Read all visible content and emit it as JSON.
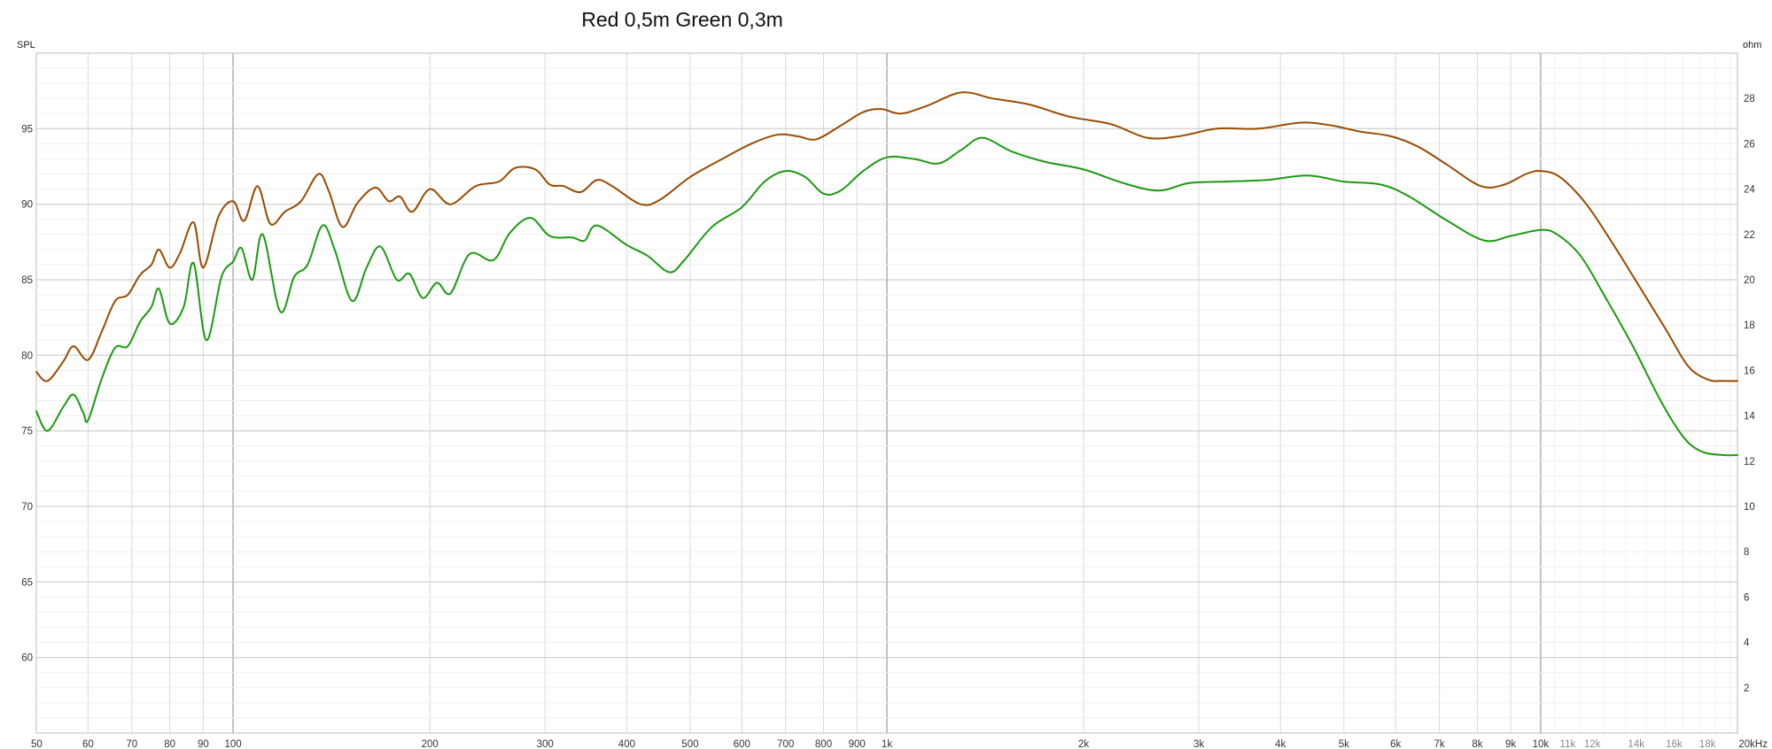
{
  "chart_data": {
    "type": "line",
    "title": "Red 0,5m Green 0,3m",
    "ylabel": "SPL",
    "y2label": "ohm",
    "x_scale": "log",
    "xlim": [
      50,
      20000
    ],
    "ylim": [
      55,
      100
    ],
    "y2lim": [
      0,
      30
    ],
    "grid": true,
    "y_ticks": [
      60,
      65,
      70,
      75,
      80,
      85,
      90,
      95
    ],
    "y2_ticks": [
      2,
      4,
      6,
      8,
      10,
      12,
      14,
      16,
      18,
      20,
      22,
      24,
      26,
      28
    ],
    "x_ticks": [
      {
        "value": 50,
        "label": "50"
      },
      {
        "value": 60,
        "label": "60"
      },
      {
        "value": 70,
        "label": "70"
      },
      {
        "value": 80,
        "label": "80"
      },
      {
        "value": 90,
        "label": "90"
      },
      {
        "value": 100,
        "label": "100"
      },
      {
        "value": 200,
        "label": "200"
      },
      {
        "value": 300,
        "label": "300"
      },
      {
        "value": 400,
        "label": "400"
      },
      {
        "value": 500,
        "label": "500"
      },
      {
        "value": 600,
        "label": "600"
      },
      {
        "value": 700,
        "label": "700"
      },
      {
        "value": 800,
        "label": "800"
      },
      {
        "value": 900,
        "label": "900"
      },
      {
        "value": 1000,
        "label": "1k"
      },
      {
        "value": 2000,
        "label": "2k"
      },
      {
        "value": 3000,
        "label": "3k"
      },
      {
        "value": 4000,
        "label": "4k"
      },
      {
        "value": 5000,
        "label": "5k"
      },
      {
        "value": 6000,
        "label": "6k"
      },
      {
        "value": 7000,
        "label": "7k"
      },
      {
        "value": 8000,
        "label": "8k"
      },
      {
        "value": 9000,
        "label": "9k"
      },
      {
        "value": 10000,
        "label": "10k"
      },
      {
        "value": 11000,
        "label": "11k",
        "minor": true
      },
      {
        "value": 12000,
        "label": "12k",
        "minor": true
      },
      {
        "value": 14000,
        "label": "14k",
        "minor": true
      },
      {
        "value": 16000,
        "label": "16k",
        "minor": true
      },
      {
        "value": 18000,
        "label": "18k",
        "minor": true
      },
      {
        "value": 20000,
        "label": "20kHz"
      }
    ],
    "series": [
      {
        "color": "#9a4a00",
        "points": [
          [
            50,
            78.9
          ],
          [
            52,
            78.3
          ],
          [
            55,
            79.6
          ],
          [
            57,
            80.6
          ],
          [
            60,
            79.7
          ],
          [
            63,
            81.6
          ],
          [
            66,
            83.6
          ],
          [
            69,
            84.0
          ],
          [
            72,
            85.3
          ],
          [
            75,
            86.0
          ],
          [
            77,
            87.0
          ],
          [
            80,
            85.8
          ],
          [
            83,
            86.8
          ],
          [
            87,
            88.8
          ],
          [
            90,
            85.8
          ],
          [
            95,
            89.2
          ],
          [
            100,
            90.2
          ],
          [
            104,
            88.9
          ],
          [
            109,
            91.2
          ],
          [
            114,
            88.7
          ],
          [
            120,
            89.5
          ],
          [
            127,
            90.2
          ],
          [
            135,
            92.0
          ],
          [
            140,
            90.9
          ],
          [
            147,
            88.5
          ],
          [
            155,
            90.1
          ],
          [
            165,
            91.1
          ],
          [
            173,
            90.2
          ],
          [
            180,
            90.5
          ],
          [
            188,
            89.5
          ],
          [
            200,
            91.0
          ],
          [
            215,
            90.0
          ],
          [
            235,
            91.2
          ],
          [
            255,
            91.5
          ],
          [
            270,
            92.4
          ],
          [
            290,
            92.3
          ],
          [
            305,
            91.3
          ],
          [
            320,
            91.2
          ],
          [
            340,
            90.8
          ],
          [
            360,
            91.6
          ],
          [
            380,
            91.2
          ],
          [
            420,
            90.0
          ],
          [
            450,
            90.3
          ],
          [
            500,
            91.8
          ],
          [
            560,
            93.0
          ],
          [
            620,
            94.0
          ],
          [
            680,
            94.6
          ],
          [
            730,
            94.5
          ],
          [
            780,
            94.3
          ],
          [
            850,
            95.2
          ],
          [
            920,
            96.1
          ],
          [
            980,
            96.3
          ],
          [
            1050,
            96.0
          ],
          [
            1150,
            96.5
          ],
          [
            1300,
            97.4
          ],
          [
            1450,
            97.0
          ],
          [
            1650,
            96.6
          ],
          [
            1900,
            95.8
          ],
          [
            2200,
            95.3
          ],
          [
            2500,
            94.4
          ],
          [
            2800,
            94.5
          ],
          [
            3200,
            95.0
          ],
          [
            3700,
            95.0
          ],
          [
            4300,
            95.4
          ],
          [
            4800,
            95.2
          ],
          [
            5300,
            94.8
          ],
          [
            5900,
            94.5
          ],
          [
            6500,
            93.8
          ],
          [
            7200,
            92.6
          ],
          [
            8100,
            91.2
          ],
          [
            8800,
            91.3
          ],
          [
            9500,
            92.0
          ],
          [
            10000,
            92.2
          ],
          [
            10700,
            91.8
          ],
          [
            11700,
            90.1
          ],
          [
            12800,
            87.6
          ],
          [
            14000,
            84.9
          ],
          [
            15500,
            81.8
          ],
          [
            16800,
            79.3
          ],
          [
            18000,
            78.4
          ],
          [
            19000,
            78.3
          ],
          [
            20000,
            78.3
          ]
        ]
      },
      {
        "color": "#1a9a10",
        "points": [
          [
            50,
            76.3
          ],
          [
            52,
            75.0
          ],
          [
            55,
            76.6
          ],
          [
            57,
            77.4
          ],
          [
            59,
            76.2
          ],
          [
            60,
            75.7
          ],
          [
            63,
            78.5
          ],
          [
            66,
            80.5
          ],
          [
            69,
            80.6
          ],
          [
            72,
            82.2
          ],
          [
            75,
            83.2
          ],
          [
            77,
            84.4
          ],
          [
            80,
            82.1
          ],
          [
            84,
            83.2
          ],
          [
            87,
            86.1
          ],
          [
            91,
            81.0
          ],
          [
            96,
            85.2
          ],
          [
            100,
            86.2
          ],
          [
            103,
            87.1
          ],
          [
            107,
            85.0
          ],
          [
            111,
            88.0
          ],
          [
            118,
            82.9
          ],
          [
            124,
            85.2
          ],
          [
            130,
            86.0
          ],
          [
            137,
            88.6
          ],
          [
            143,
            87.0
          ],
          [
            152,
            83.6
          ],
          [
            160,
            85.8
          ],
          [
            168,
            87.2
          ],
          [
            178,
            85.0
          ],
          [
            186,
            85.4
          ],
          [
            195,
            83.8
          ],
          [
            205,
            84.8
          ],
          [
            215,
            84.1
          ],
          [
            230,
            86.7
          ],
          [
            250,
            86.3
          ],
          [
            265,
            88.1
          ],
          [
            285,
            89.1
          ],
          [
            305,
            87.9
          ],
          [
            330,
            87.8
          ],
          [
            345,
            87.6
          ],
          [
            360,
            88.6
          ],
          [
            400,
            87.3
          ],
          [
            430,
            86.6
          ],
          [
            465,
            85.5
          ],
          [
            490,
            86.3
          ],
          [
            540,
            88.5
          ],
          [
            600,
            89.8
          ],
          [
            650,
            91.5
          ],
          [
            700,
            92.2
          ],
          [
            750,
            91.8
          ],
          [
            800,
            90.7
          ],
          [
            850,
            90.9
          ],
          [
            920,
            92.2
          ],
          [
            1000,
            93.1
          ],
          [
            1100,
            93.0
          ],
          [
            1200,
            92.7
          ],
          [
            1300,
            93.6
          ],
          [
            1400,
            94.4
          ],
          [
            1550,
            93.5
          ],
          [
            1750,
            92.8
          ],
          [
            2000,
            92.3
          ],
          [
            2300,
            91.4
          ],
          [
            2600,
            90.9
          ],
          [
            2900,
            91.4
          ],
          [
            3300,
            91.5
          ],
          [
            3800,
            91.6
          ],
          [
            4400,
            91.9
          ],
          [
            5000,
            91.5
          ],
          [
            5700,
            91.3
          ],
          [
            6300,
            90.5
          ],
          [
            7200,
            88.9
          ],
          [
            8200,
            87.6
          ],
          [
            9000,
            87.9
          ],
          [
            10000,
            88.3
          ],
          [
            10600,
            88.0
          ],
          [
            11500,
            86.6
          ],
          [
            12500,
            84.0
          ],
          [
            13800,
            80.7
          ],
          [
            15300,
            76.9
          ],
          [
            16600,
            74.5
          ],
          [
            17700,
            73.6
          ],
          [
            19000,
            73.4
          ],
          [
            20000,
            73.4
          ]
        ]
      }
    ]
  }
}
